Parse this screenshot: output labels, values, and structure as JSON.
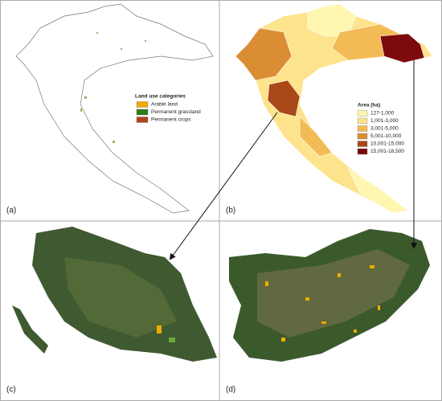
{
  "panels": [
    {
      "label": "(a)",
      "legend": {
        "title": "Land use categories",
        "items": [
          {
            "label": "Arable land",
            "color": "#f2a900"
          },
          {
            "label": "Permanent grassland",
            "color": "#2e7d1e"
          },
          {
            "label": "Permanent crops",
            "color": "#b0451b"
          }
        ]
      }
    },
    {
      "label": "(b)",
      "legend": {
        "title": "Area (ha)",
        "items": [
          {
            "label": "127-1,000",
            "color": "#fff7b0"
          },
          {
            "label": "1,001-3,000",
            "color": "#fde38c"
          },
          {
            "label": "3,001-5,000",
            "color": "#f3bb55"
          },
          {
            "label": "5,001-10,000",
            "color": "#db8d33"
          },
          {
            "label": "10,001-15,000",
            "color": "#a94818"
          },
          {
            "label": "15,001-18,500",
            "color": "#7d0a0c"
          }
        ]
      }
    },
    {
      "label": "(c)"
    },
    {
      "label": "(d)"
    }
  ]
}
